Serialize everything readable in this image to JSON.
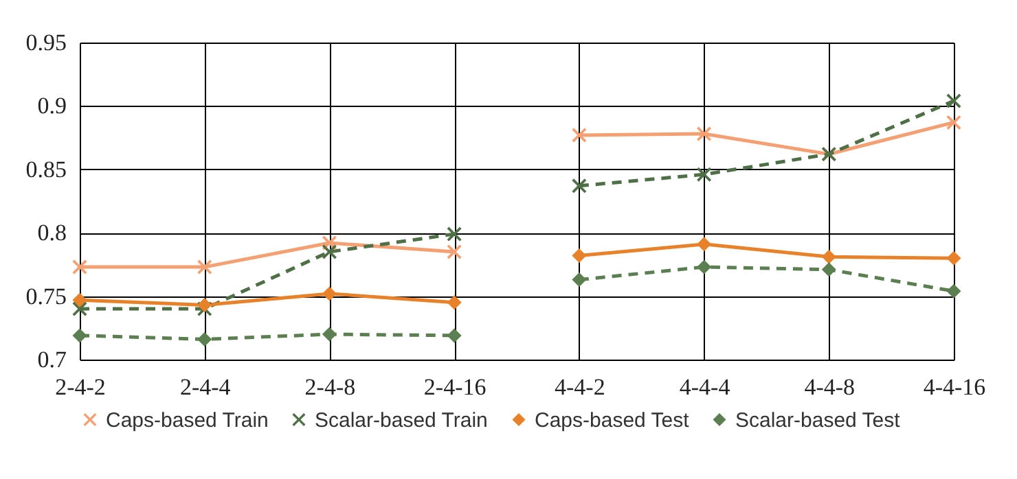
{
  "chart_data": {
    "type": "line",
    "categories": [
      "2-4-2",
      "2-4-4",
      "2-4-8",
      "2-4-16",
      "4-4-2",
      "4-4-4",
      "4-4-8",
      "4-4-16"
    ],
    "series": [
      {
        "name": "Caps-based Train",
        "color": "#f5a072",
        "marker": "cross",
        "line_style": "solid",
        "values": [
          0.773,
          0.773,
          0.792,
          0.785,
          null,
          null,
          null,
          null
        ]
      },
      {
        "name": "Scalar-based Train",
        "color": "#4f6f47",
        "marker": "cross",
        "line_style": "dashed",
        "values": [
          0.74,
          0.74,
          0.785,
          0.799,
          null,
          null,
          null,
          null
        ]
      },
      {
        "name": "Caps-based Test",
        "color": "#e8822a",
        "marker": "diamond",
        "line_style": "solid",
        "values": [
          0.747,
          0.743,
          0.752,
          0.745,
          null,
          null,
          null,
          null
        ]
      },
      {
        "name": "Scalar-based Test",
        "color": "#5b7f50",
        "marker": "diamond",
        "line_style": "dashed",
        "values": [
          0.719,
          0.716,
          0.72,
          0.719,
          null,
          null,
          null,
          null
        ]
      },
      {
        "color": "#f5a072",
        "marker": "cross",
        "line_style": "solid",
        "values": [
          null,
          null,
          null,
          null,
          0.877,
          0.878,
          0.862,
          0.887
        ]
      },
      {
        "color": "#4f6f47",
        "marker": "cross",
        "line_style": "dashed",
        "values": [
          null,
          null,
          null,
          null,
          0.837,
          0.846,
          0.862,
          0.904
        ]
      },
      {
        "color": "#e8822a",
        "marker": "diamond",
        "line_style": "solid",
        "values": [
          null,
          null,
          null,
          null,
          0.782,
          0.791,
          0.781,
          0.78
        ]
      },
      {
        "color": "#5b7f50",
        "marker": "diamond",
        "line_style": "dashed",
        "values": [
          null,
          null,
          null,
          null,
          0.763,
          0.773,
          0.771,
          0.754
        ]
      }
    ],
    "ylim": [
      0.7,
      0.95
    ],
    "yticks": [
      0.7,
      0.75,
      0.8,
      0.85,
      0.9,
      0.95
    ],
    "grid": true,
    "legend": "bottom"
  }
}
